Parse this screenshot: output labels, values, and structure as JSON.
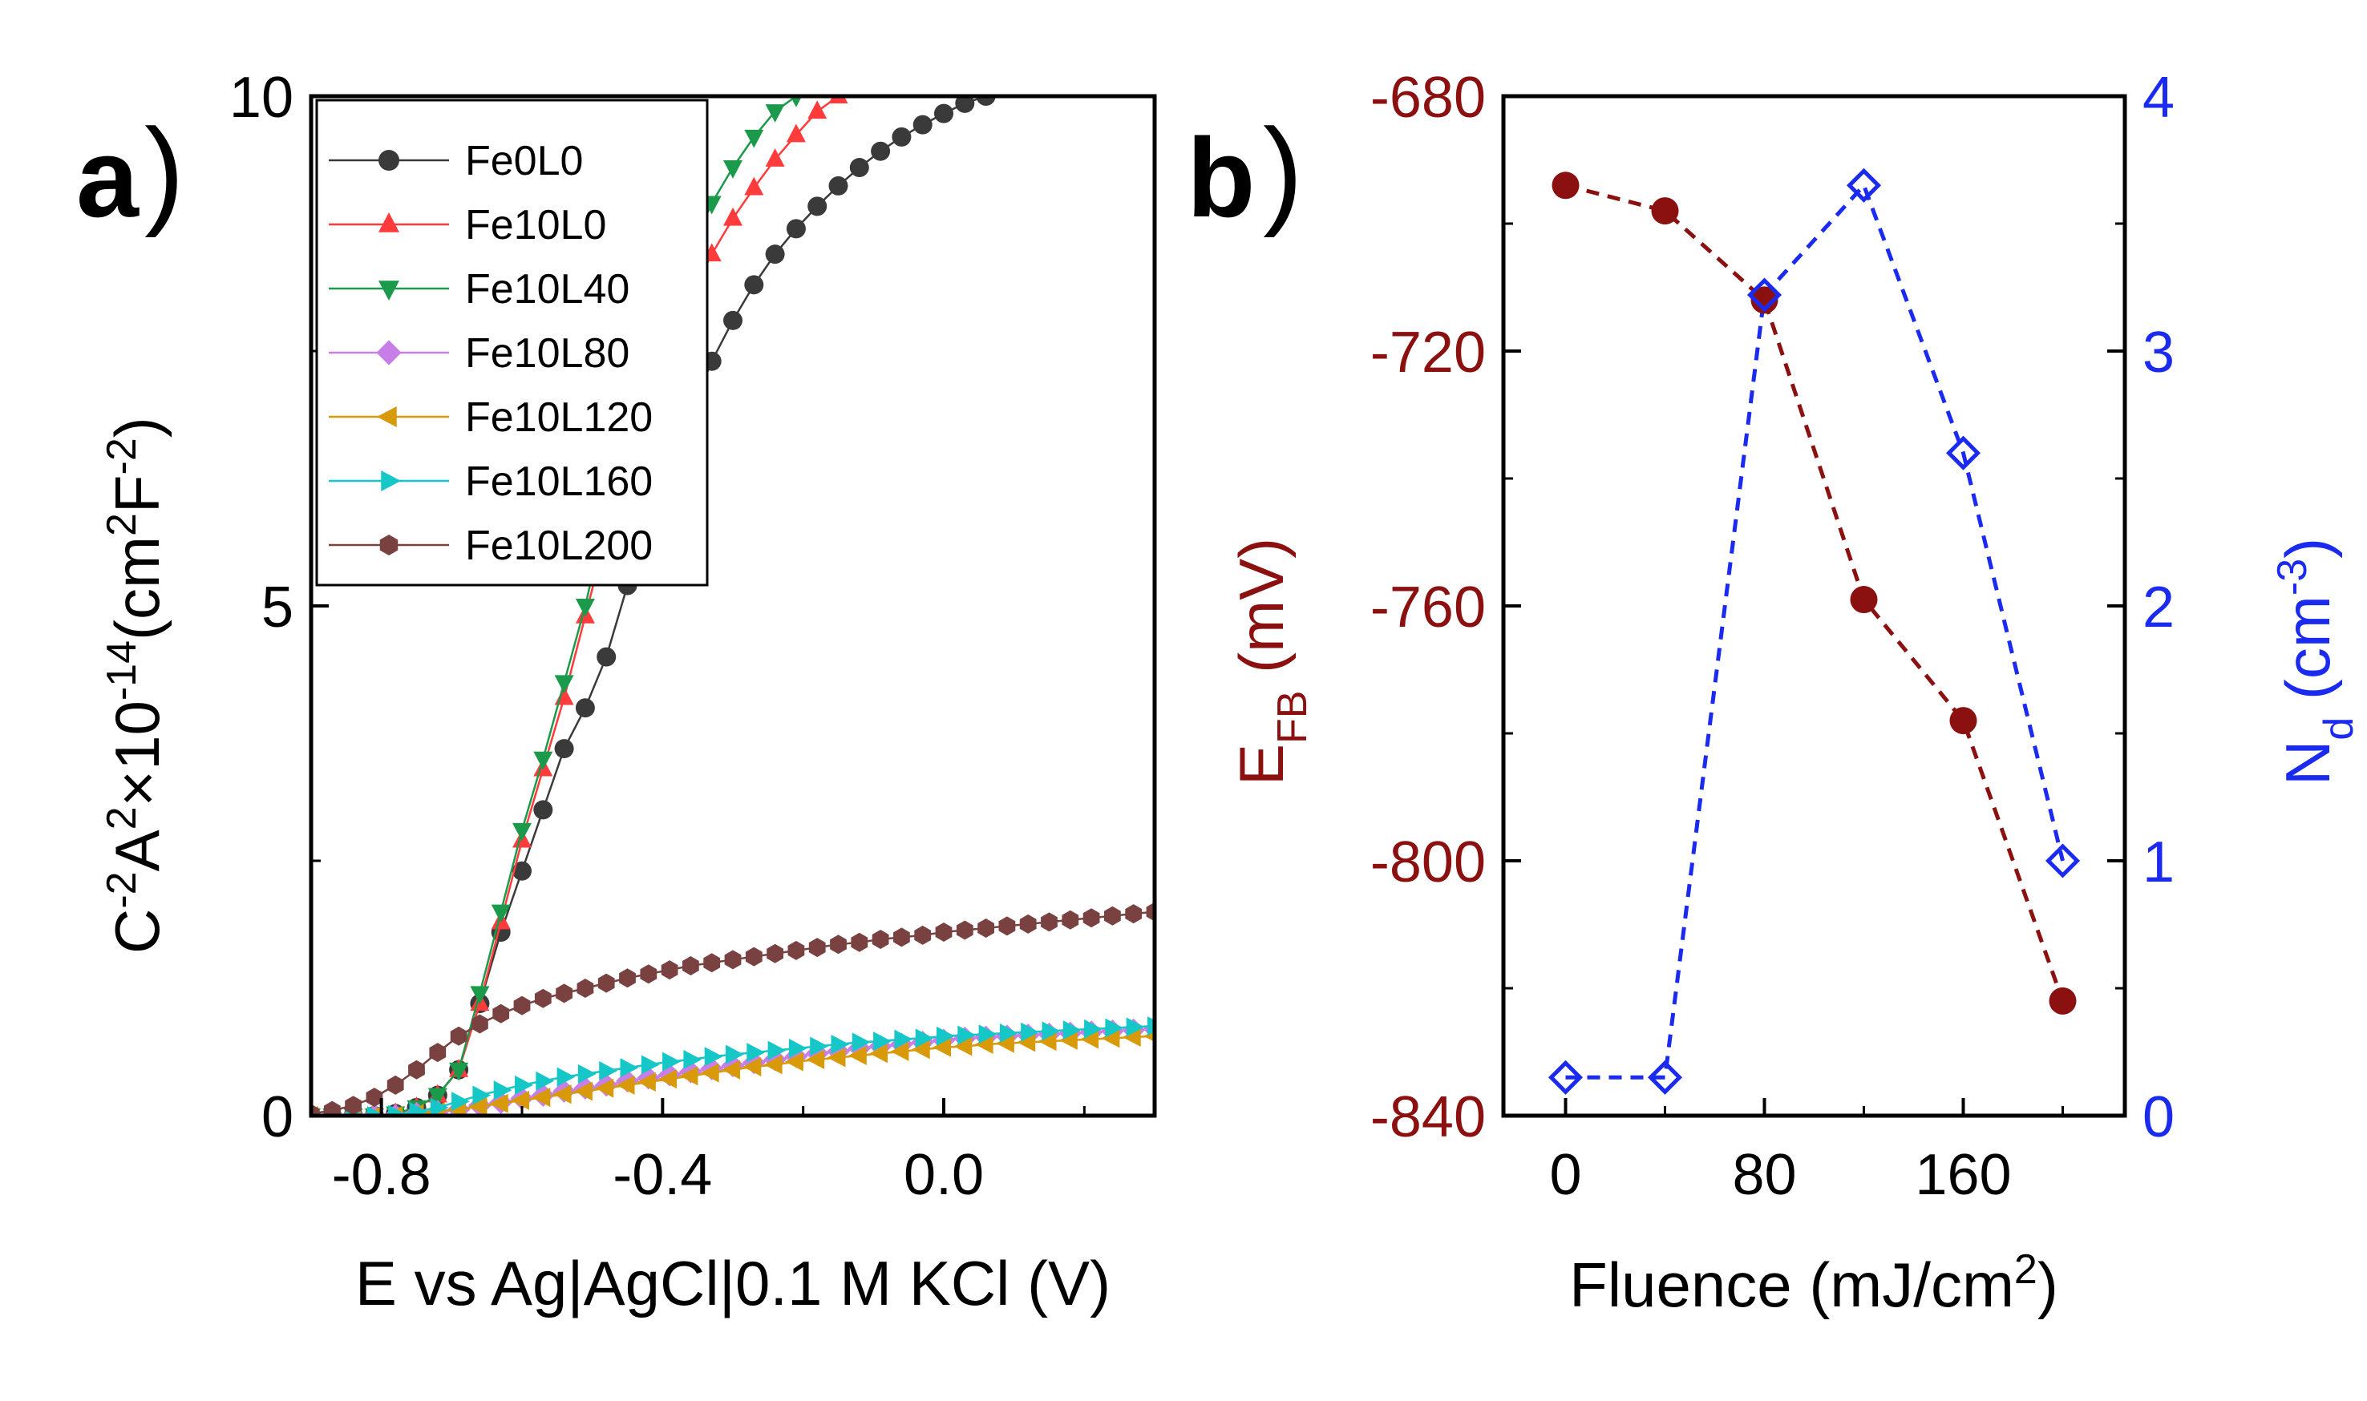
{
  "figure": {
    "panel_a_label": "a",
    "panel_b_label": "b",
    "close_paren": ")"
  },
  "chart_data": [
    {
      "type": "scatter",
      "panel": "a",
      "title": "",
      "xlabel": "E vs Ag|AgCl|0.1 M KCl (V)",
      "ylabel_parts": {
        "c": "C",
        "c_exp": "-2",
        "a": "A",
        "a_exp": "2",
        "times": "×10",
        "scale_exp": "-14",
        "unit_open": "(cm",
        "unit_exp1": "2",
        "unit_f": "F",
        "unit_exp2": "-2",
        "unit_close": ")"
      },
      "xlim": [
        -0.9,
        0.3
      ],
      "ylim": [
        0,
        10
      ],
      "xticks": [
        -0.8,
        -0.4,
        0.0
      ],
      "xtick_labels": [
        "-0.8",
        "-0.4",
        "0.0"
      ],
      "yticks": [
        0,
        5,
        10
      ],
      "ytick_labels": [
        "0",
        "5",
        "10"
      ],
      "legend_position": "top-left",
      "x": [
        -0.9,
        -0.87,
        -0.84,
        -0.81,
        -0.78,
        -0.75,
        -0.72,
        -0.69,
        -0.66,
        -0.63,
        -0.6,
        -0.57,
        -0.54,
        -0.51,
        -0.48,
        -0.45,
        -0.42,
        -0.39,
        -0.36,
        -0.33,
        -0.3,
        -0.27,
        -0.24,
        -0.21,
        -0.18,
        -0.15,
        -0.12,
        -0.09,
        -0.06,
        -0.03,
        0.0,
        0.03,
        0.06,
        0.09,
        0.12,
        0.15,
        0.18,
        0.21,
        0.24,
        0.27,
        0.3
      ],
      "series": [
        {
          "name": "Fe0L0",
          "color": "#3a3a3a",
          "marker": "circle",
          "values": [
            0,
            0,
            0,
            0,
            0.02,
            0.08,
            0.2,
            0.45,
            1.1,
            1.8,
            2.4,
            3.0,
            3.6,
            4.0,
            4.5,
            5.2,
            5.85,
            6.4,
            6.9,
            7.4,
            7.8,
            8.15,
            8.45,
            8.7,
            8.92,
            9.12,
            9.3,
            9.46,
            9.6,
            9.72,
            9.83,
            9.93,
            10.0,
            null,
            null,
            null,
            null,
            null,
            null,
            null,
            null
          ]
        },
        {
          "name": "Fe10L0",
          "color": "#ff3b3b",
          "marker": "triangle-up",
          "values": [
            0,
            0,
            0,
            0,
            0.02,
            0.08,
            0.2,
            0.45,
            1.1,
            1.9,
            2.7,
            3.4,
            4.1,
            4.9,
            5.7,
            6.5,
            7.1,
            7.6,
            8.05,
            8.45,
            8.8,
            9.1,
            9.38,
            9.62,
            9.85,
            10.0,
            null,
            null,
            null,
            null,
            null,
            null,
            null,
            null,
            null,
            null,
            null,
            null,
            null,
            null,
            null
          ]
        },
        {
          "name": "Fe10L40",
          "color": "#1a9a4a",
          "marker": "triangle-down",
          "values": [
            0,
            0,
            0,
            0,
            0.02,
            0.08,
            0.2,
            0.45,
            1.2,
            2.0,
            2.8,
            3.5,
            4.25,
            5.0,
            5.9,
            6.7,
            7.45,
            8.0,
            8.5,
            8.95,
            9.3,
            9.6,
            9.85,
            10.0,
            null,
            null,
            null,
            null,
            null,
            null,
            null,
            null,
            null,
            null,
            null,
            null,
            null,
            null,
            null,
            null,
            null
          ]
        },
        {
          "name": "Fe10L80",
          "color": "#c77ee6",
          "marker": "diamond",
          "values": [
            0,
            0,
            0,
            0,
            0,
            0.02,
            0.04,
            0.06,
            0.1,
            0.13,
            0.17,
            0.2,
            0.24,
            0.27,
            0.3,
            0.34,
            0.37,
            0.4,
            0.43,
            0.46,
            0.49,
            0.52,
            0.55,
            0.58,
            0.61,
            0.63,
            0.66,
            0.68,
            0.7,
            0.72,
            0.74,
            0.76,
            0.77,
            0.78,
            0.79,
            0.8,
            0.81,
            0.82,
            0.83,
            0.84,
            0.85
          ]
        },
        {
          "name": "Fe10L120",
          "color": "#d99a0a",
          "marker": "triangle-left",
          "values": [
            0,
            0,
            0,
            0,
            0,
            0.02,
            0.04,
            0.06,
            0.09,
            0.12,
            0.15,
            0.18,
            0.21,
            0.24,
            0.27,
            0.3,
            0.33,
            0.36,
            0.39,
            0.42,
            0.45,
            0.48,
            0.5,
            0.53,
            0.55,
            0.57,
            0.59,
            0.61,
            0.63,
            0.65,
            0.67,
            0.68,
            0.7,
            0.71,
            0.72,
            0.73,
            0.74,
            0.75,
            0.76,
            0.77,
            0.78
          ]
        },
        {
          "name": "Fe10L160",
          "color": "#16c7c7",
          "marker": "triangle-right",
          "values": [
            0,
            0,
            0,
            0,
            0.01,
            0.04,
            0.08,
            0.14,
            0.2,
            0.25,
            0.3,
            0.34,
            0.38,
            0.41,
            0.44,
            0.47,
            0.5,
            0.53,
            0.55,
            0.58,
            0.6,
            0.62,
            0.64,
            0.66,
            0.68,
            0.7,
            0.72,
            0.73,
            0.75,
            0.76,
            0.78,
            0.79,
            0.8,
            0.81,
            0.82,
            0.83,
            0.84,
            0.85,
            0.86,
            0.87,
            0.88
          ]
        },
        {
          "name": "Fe10L200",
          "color": "#7a4141",
          "marker": "hexagon",
          "values": [
            0.02,
            0.05,
            0.1,
            0.18,
            0.3,
            0.45,
            0.62,
            0.78,
            0.9,
            1.0,
            1.08,
            1.15,
            1.2,
            1.25,
            1.3,
            1.35,
            1.39,
            1.43,
            1.47,
            1.5,
            1.53,
            1.56,
            1.59,
            1.62,
            1.65,
            1.68,
            1.7,
            1.73,
            1.75,
            1.77,
            1.8,
            1.82,
            1.84,
            1.86,
            1.88,
            1.9,
            1.92,
            1.94,
            1.96,
            1.98,
            2.0
          ]
        }
      ]
    },
    {
      "type": "line",
      "panel": "b",
      "title": "",
      "xlabel_main": "Fluence (mJ/cm",
      "xlabel_exp": "2",
      "xlabel_close": ")",
      "ylabel_left_main": "E",
      "ylabel_left_sub": "FB",
      "ylabel_left_unit": " (mV)",
      "ylabel_right_main": "N",
      "ylabel_right_sub": "d",
      "ylabel_right_unit": " (cm",
      "ylabel_right_exp": "-3",
      "ylabel_right_close": ")",
      "xlim": [
        -25,
        225
      ],
      "xticks": [
        0,
        80,
        160
      ],
      "xtick_labels": [
        "0",
        "80",
        "160"
      ],
      "ylim_left": [
        -840,
        -680
      ],
      "yticks_left": [
        -840,
        -800,
        -760,
        -720,
        -680
      ],
      "ytick_labels_left": [
        "-840",
        "-800",
        "-760",
        "-720",
        "-680"
      ],
      "ylim_right": [
        0,
        4
      ],
      "yticks_right": [
        0,
        1,
        2,
        3,
        4
      ],
      "ytick_labels_right": [
        "0",
        "1",
        "2",
        "3",
        "4"
      ],
      "x": [
        0,
        40,
        80,
        120,
        160,
        200
      ],
      "series": [
        {
          "name": "E_FB",
          "axis": "left",
          "color": "#8b1010",
          "marker": "filled-circle",
          "values": [
            -694,
            -698,
            -712,
            -759,
            -778,
            -822
          ]
        },
        {
          "name": "N_d",
          "axis": "right",
          "color": "#1a2aee",
          "marker": "open-diamond",
          "values": [
            0.15,
            0.15,
            3.22,
            3.65,
            2.6,
            1.0
          ]
        }
      ]
    }
  ]
}
